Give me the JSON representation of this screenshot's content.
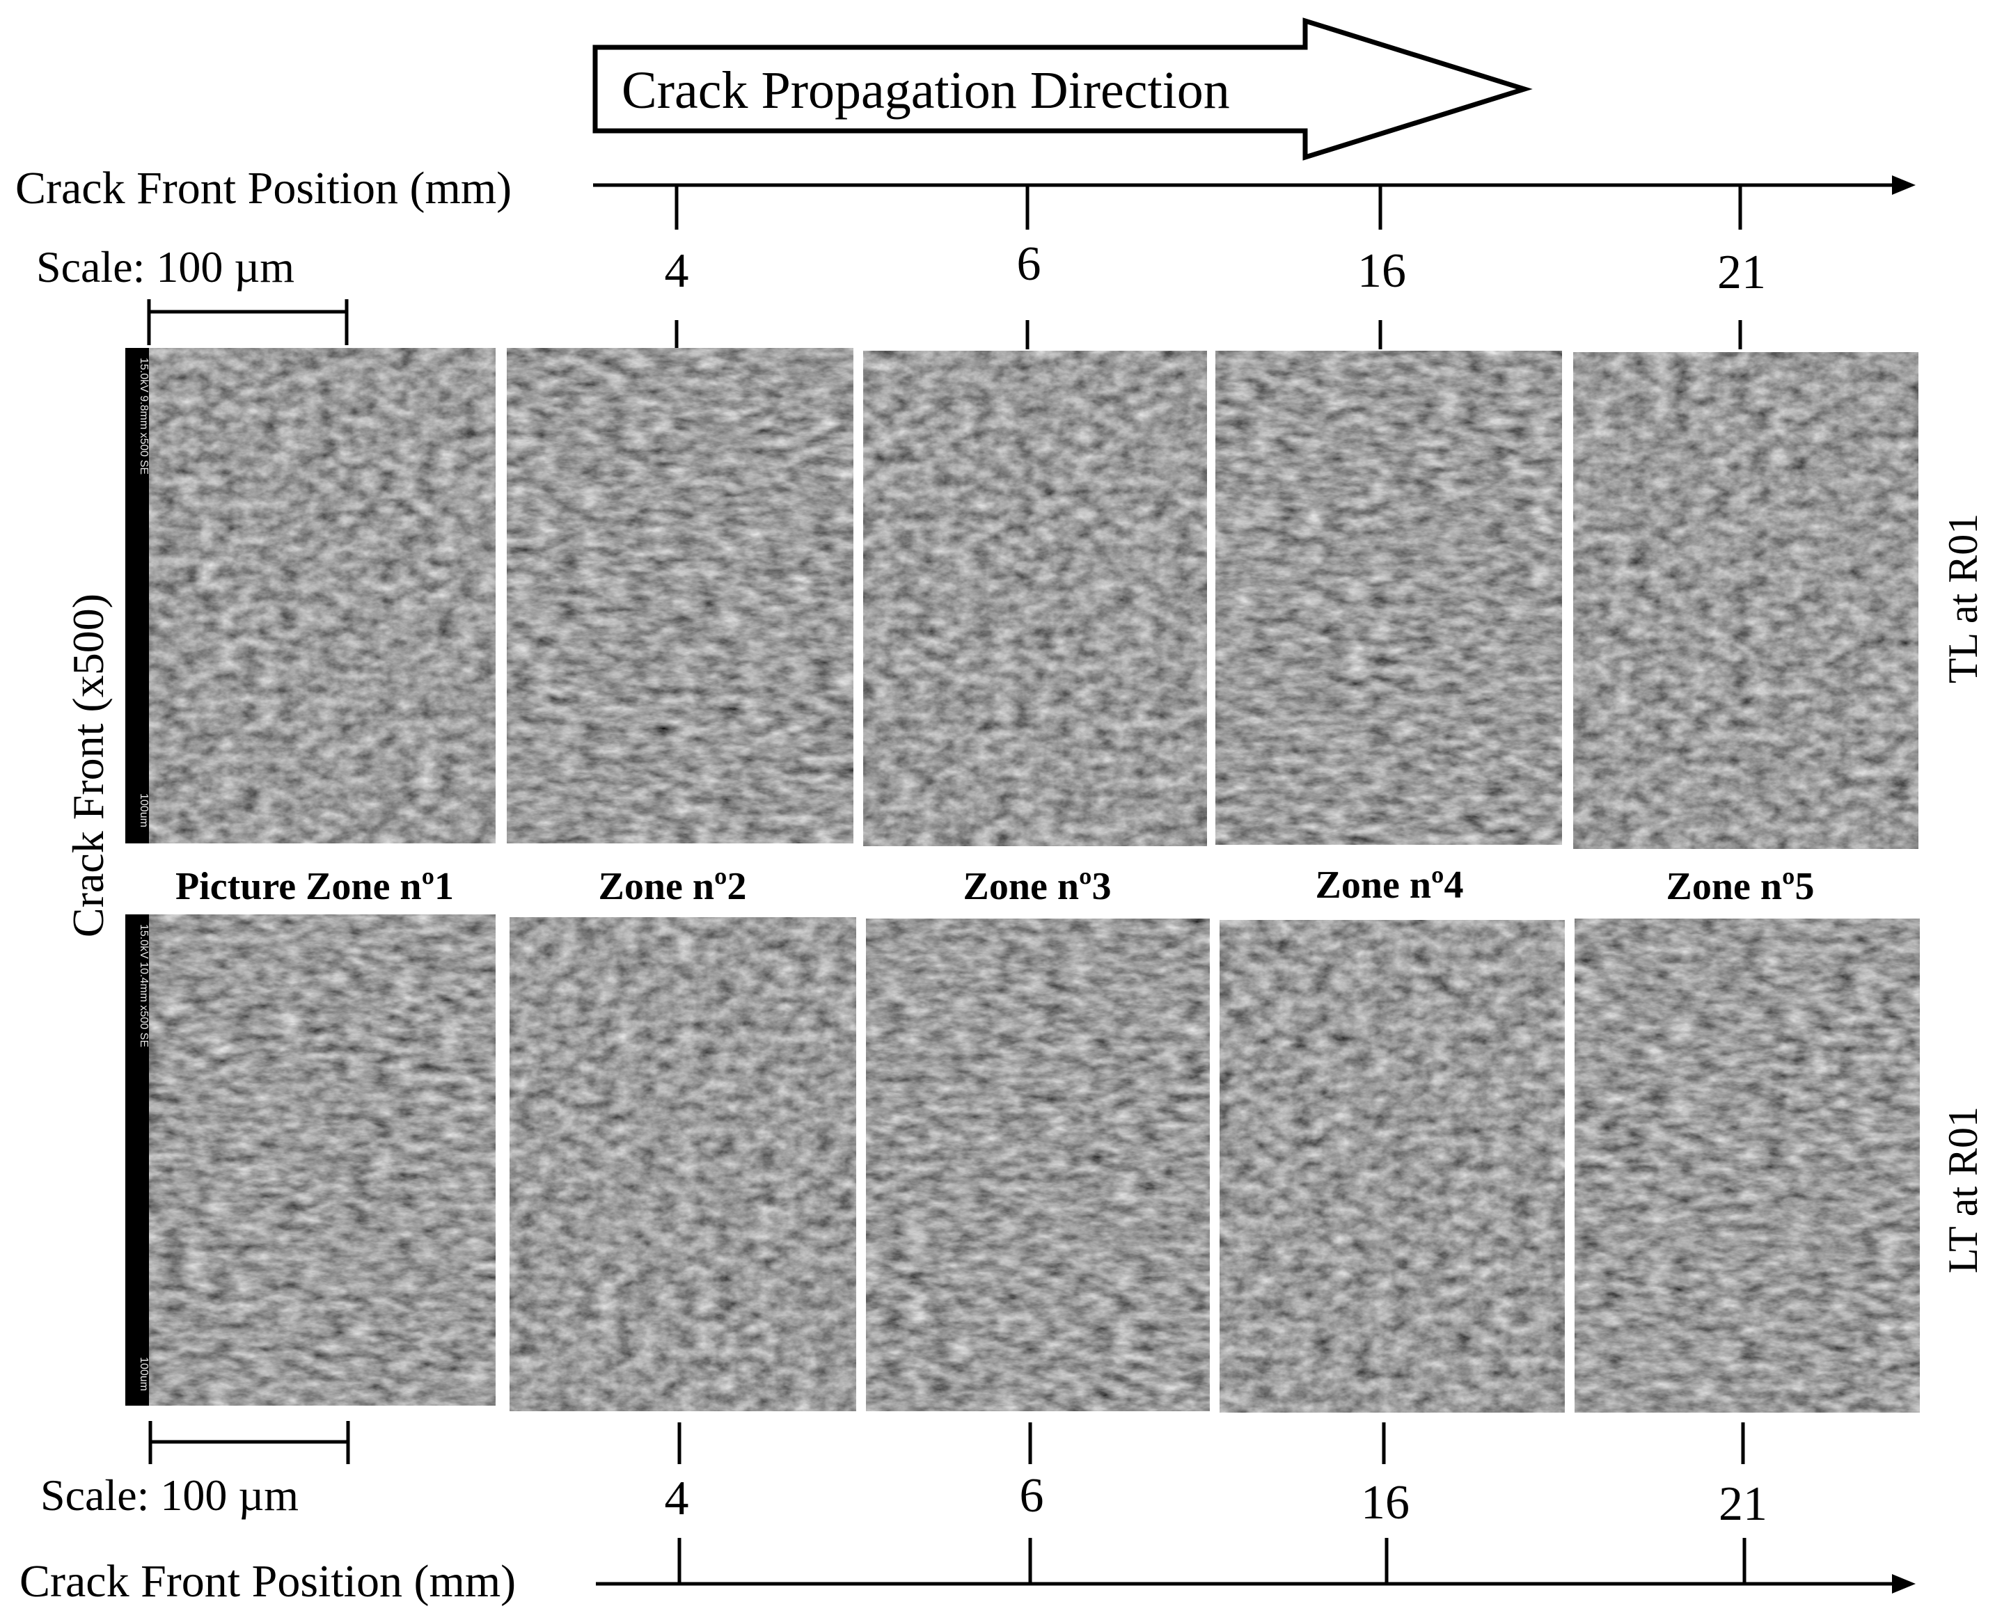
{
  "propagation_label": "Crack Propagation Direction",
  "axis_title_top": "Crack Front Position (mm)",
  "axis_title_bottom": "Crack Front Position (mm)",
  "scale_label_top": "Scale: 100 µm",
  "scale_label_bottom": "Scale: 100 µm",
  "vertical_left_label": "Crack Front (x500)",
  "row_labels": [
    "TL at R01",
    "LT at R01"
  ],
  "positions_top": [
    "4",
    "6",
    "16",
    "21"
  ],
  "positions_bottom": [
    "4",
    "6",
    "16",
    "21"
  ],
  "zone_labels": [
    "Picture Zone nº1",
    "Zone nº2",
    "Zone nº3",
    "Zone nº4",
    "Zone nº5"
  ],
  "sem_info": [
    "15.0kV 9.8mm x500 SE",
    "15.0kV 10.4mm x500 SE"
  ],
  "sem_scale_text": "100um",
  "colors": {
    "ink": "#000000",
    "sem_base": "#5a5a5a",
    "sem_strip": "#000000"
  }
}
